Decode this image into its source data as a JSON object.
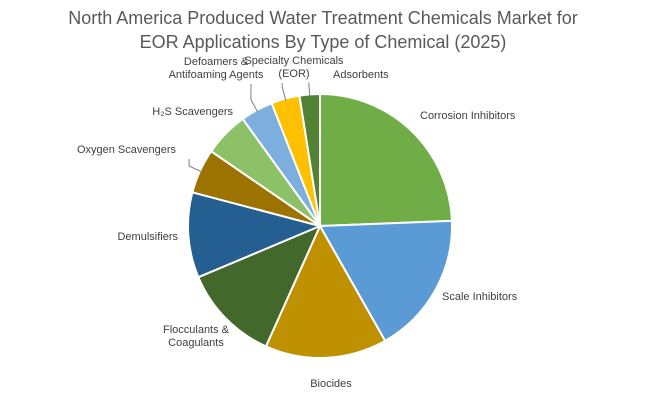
{
  "chart_data": {
    "type": "pie",
    "title_lines": [
      "North America Produced Water Treatment Chemicals Market for",
      "EOR Applications By Type of Chemical (2025)"
    ],
    "slices": [
      {
        "label_lines": [
          "Corrosion Inhibitors"
        ],
        "value": 24.5,
        "color": "#70ad47"
      },
      {
        "label_lines": [
          "Scale Inhibitors"
        ],
        "value": 17.5,
        "color": "#5b9bd5"
      },
      {
        "label_lines": [
          "Biocides"
        ],
        "value": 15.0,
        "color": "#bf9000"
      },
      {
        "label_lines": [
          "Flocculants &",
          "Coagulants"
        ],
        "value": 12.0,
        "color": "#43682b"
      },
      {
        "label_lines": [
          "Demulsifiers"
        ],
        "value": 10.5,
        "color": "#255e91"
      },
      {
        "label_lines": [
          "Oxygen Scavengers"
        ],
        "value": 5.5,
        "color": "#9c7200"
      },
      {
        "label_lines": [
          "H₂S Scavengers"
        ],
        "value": 5.5,
        "color": "#8cc168"
      },
      {
        "label_lines": [
          "Defoamers &",
          "Antifoaming Agents"
        ],
        "value": 4.0,
        "color": "#7cafdd"
      },
      {
        "label_lines": [
          "Specialty Chemicals",
          "(EOR)"
        ],
        "value": 3.5,
        "color": "#ffc000"
      },
      {
        "label_lines": [
          "Adsorbents"
        ],
        "value": 2.5,
        "color": "#548235"
      }
    ],
    "legend": "none"
  }
}
